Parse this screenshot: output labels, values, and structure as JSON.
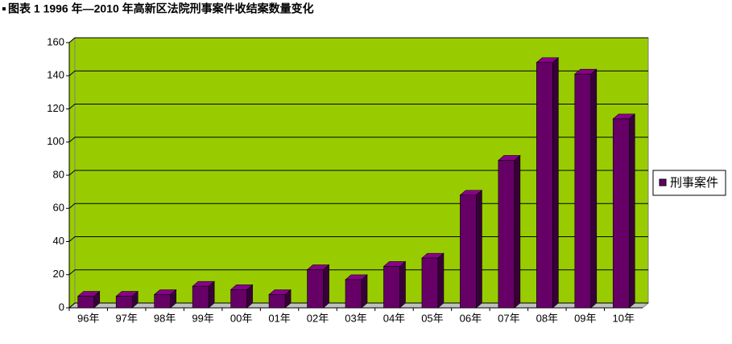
{
  "chart_data": {
    "type": "bar3d",
    "title": "图表 1 1996 年—2010 年高新区法院刑事案件收结案数量变化",
    "categories": [
      "96年",
      "97年",
      "98年",
      "99年",
      "00年",
      "01年",
      "02年",
      "03年",
      "04年",
      "05年",
      "06年",
      "07年",
      "08年",
      "09年",
      "10年"
    ],
    "series": [
      {
        "name": "刑事案件",
        "color": "#660066",
        "values": [
          7,
          7,
          8,
          13,
          11,
          8,
          23,
          17,
          25,
          30,
          68,
          89,
          148,
          141,
          114
        ]
      }
    ],
    "ylim": [
      0,
      160
    ],
    "yticks": [
      0,
      20,
      40,
      60,
      80,
      100,
      120,
      140,
      160
    ],
    "grid": true,
    "background": "#99cc00",
    "legend": "right"
  }
}
